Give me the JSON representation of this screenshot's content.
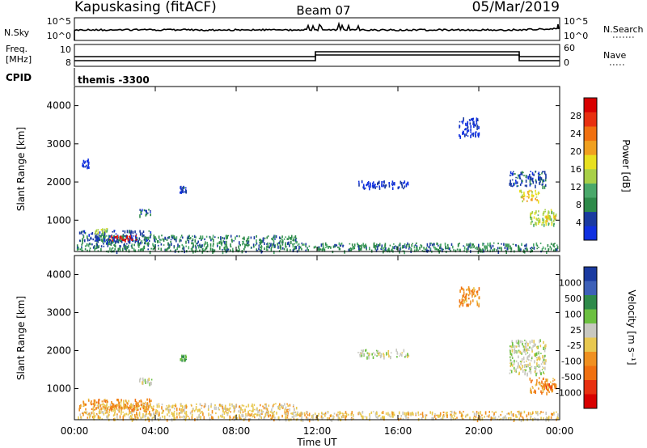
{
  "header": {
    "station": "Kapuskasing (fitACF)",
    "beam": "Beam 07",
    "date": "05/Mar/2019"
  },
  "top_panels": {
    "nsky_label": "N.Sky",
    "nsearch_label": "N.Search",
    "nsky_ticks": [
      "10^5",
      "10^0"
    ],
    "nsearch_ticks": [
      "10^5",
      "10^0"
    ],
    "freq_label_1": "Freq.",
    "freq_label_2": "[MHz]",
    "freq_ticks": [
      "10",
      "8"
    ],
    "nave_label": "Nave",
    "nave_ticks": [
      "60",
      "0"
    ],
    "cpid_label": "CPID",
    "cpid_value": "themis -3300"
  },
  "colors": {
    "power_scale": [
      "#1030e0",
      "#1a3aa0",
      "#2e8a4a",
      "#4aa86a",
      "#a8d048",
      "#e8e020",
      "#f0a020",
      "#f07010",
      "#e83010",
      "#d80000"
    ],
    "velocity_scale": [
      "#1a3aa0",
      "#3d60b8",
      "#2e8a4a",
      "#6cc040",
      "#c8c8c0",
      "#e8c850",
      "#f09020",
      "#f07010",
      "#e83010",
      "#d80000"
    ]
  },
  "chart_data": [
    {
      "type": "heatmap",
      "quantity": "power",
      "ylabel": "Slant Range [km]",
      "xlabel": "Time UT",
      "yticks": [
        "1000",
        "2000",
        "3000",
        "4000"
      ],
      "ylim": [
        180,
        4500
      ],
      "xlim": [
        0,
        24
      ],
      "xticks": [
        "00:00",
        "04:00",
        "08:00",
        "12:00",
        "16:00",
        "20:00",
        "00:00"
      ],
      "colorbar_label": "Power [dB]",
      "colorbar_ticks": [
        "4",
        "8",
        "12",
        "16",
        "20",
        "24",
        "28"
      ],
      "regions": [
        {
          "t": [
            0.1,
            23.9
          ],
          "r": [
            200,
            420
          ],
          "level": 2
        },
        {
          "t": [
            1.0,
            11.0
          ],
          "r": [
            420,
            620
          ],
          "level": 2
        },
        {
          "t": [
            0.2,
            3.8
          ],
          "r": [
            450,
            750
          ],
          "level": 1
        },
        {
          "t": [
            1.5,
            3.2
          ],
          "r": [
            500,
            620
          ],
          "level": 9
        },
        {
          "t": [
            1.0,
            1.6
          ],
          "r": [
            650,
            800
          ],
          "level": 4
        },
        {
          "t": [
            0.3,
            0.7
          ],
          "r": [
            2400,
            2650
          ],
          "level": 0
        },
        {
          "t": [
            3.2,
            3.8
          ],
          "r": [
            1150,
            1300
          ],
          "level": 1
        },
        {
          "t": [
            5.2,
            5.5
          ],
          "r": [
            1750,
            1900
          ],
          "level": 1
        },
        {
          "t": [
            14.0,
            16.5
          ],
          "r": [
            1850,
            2050
          ],
          "level": 0
        },
        {
          "t": [
            19.0,
            20.0
          ],
          "r": [
            3200,
            3700
          ],
          "level": 0
        },
        {
          "t": [
            21.5,
            23.3
          ],
          "r": [
            1900,
            2300
          ],
          "level": 1
        },
        {
          "t": [
            22.0,
            23.0
          ],
          "r": [
            1500,
            1800
          ],
          "level": 5
        },
        {
          "t": [
            22.5,
            23.8
          ],
          "r": [
            900,
            1300
          ],
          "level": 4
        },
        {
          "t": [
            23.2,
            23.8
          ],
          "r": [
            1000,
            1150
          ],
          "level": 5
        }
      ]
    },
    {
      "type": "heatmap",
      "quantity": "velocity",
      "ylabel": "Slant Range [km]",
      "xlabel": "Time UT",
      "yticks": [
        "1000",
        "2000",
        "3000",
        "4000"
      ],
      "ylim": [
        180,
        4500
      ],
      "xlim": [
        0,
        24
      ],
      "xticks": [
        "00:00",
        "04:00",
        "08:00",
        "12:00",
        "16:00",
        "20:00",
        "00:00"
      ],
      "colorbar_label": "Velocity [m s⁻¹]",
      "colorbar_ticks": [
        "1000",
        "500",
        "100",
        "25",
        "-25",
        "-100",
        "-500",
        "-1000"
      ],
      "regions": [
        {
          "t": [
            0.1,
            23.9
          ],
          "r": [
            200,
            420
          ],
          "level": 5
        },
        {
          "t": [
            1.0,
            11.0
          ],
          "r": [
            420,
            620
          ],
          "level": 5
        },
        {
          "t": [
            0.2,
            3.8
          ],
          "r": [
            450,
            750
          ],
          "level": 6
        },
        {
          "t": [
            1.5,
            3.2
          ],
          "r": [
            500,
            620
          ],
          "level": 6
        },
        {
          "t": [
            3.2,
            3.8
          ],
          "r": [
            1150,
            1300
          ],
          "level": 4
        },
        {
          "t": [
            5.2,
            5.5
          ],
          "r": [
            1750,
            1900
          ],
          "level": 2
        },
        {
          "t": [
            14.0,
            16.5
          ],
          "r": [
            1850,
            2050
          ],
          "level": 4
        },
        {
          "t": [
            19.0,
            20.0
          ],
          "r": [
            3200,
            3700
          ],
          "level": 6
        },
        {
          "t": [
            21.5,
            23.3
          ],
          "r": [
            1400,
            2300
          ],
          "level": 4
        },
        {
          "t": [
            22.5,
            23.8
          ],
          "r": [
            900,
            1300
          ],
          "level": 6
        },
        {
          "t": [
            23.2,
            23.8
          ],
          "r": [
            1000,
            1150
          ],
          "level": 7
        }
      ]
    }
  ]
}
